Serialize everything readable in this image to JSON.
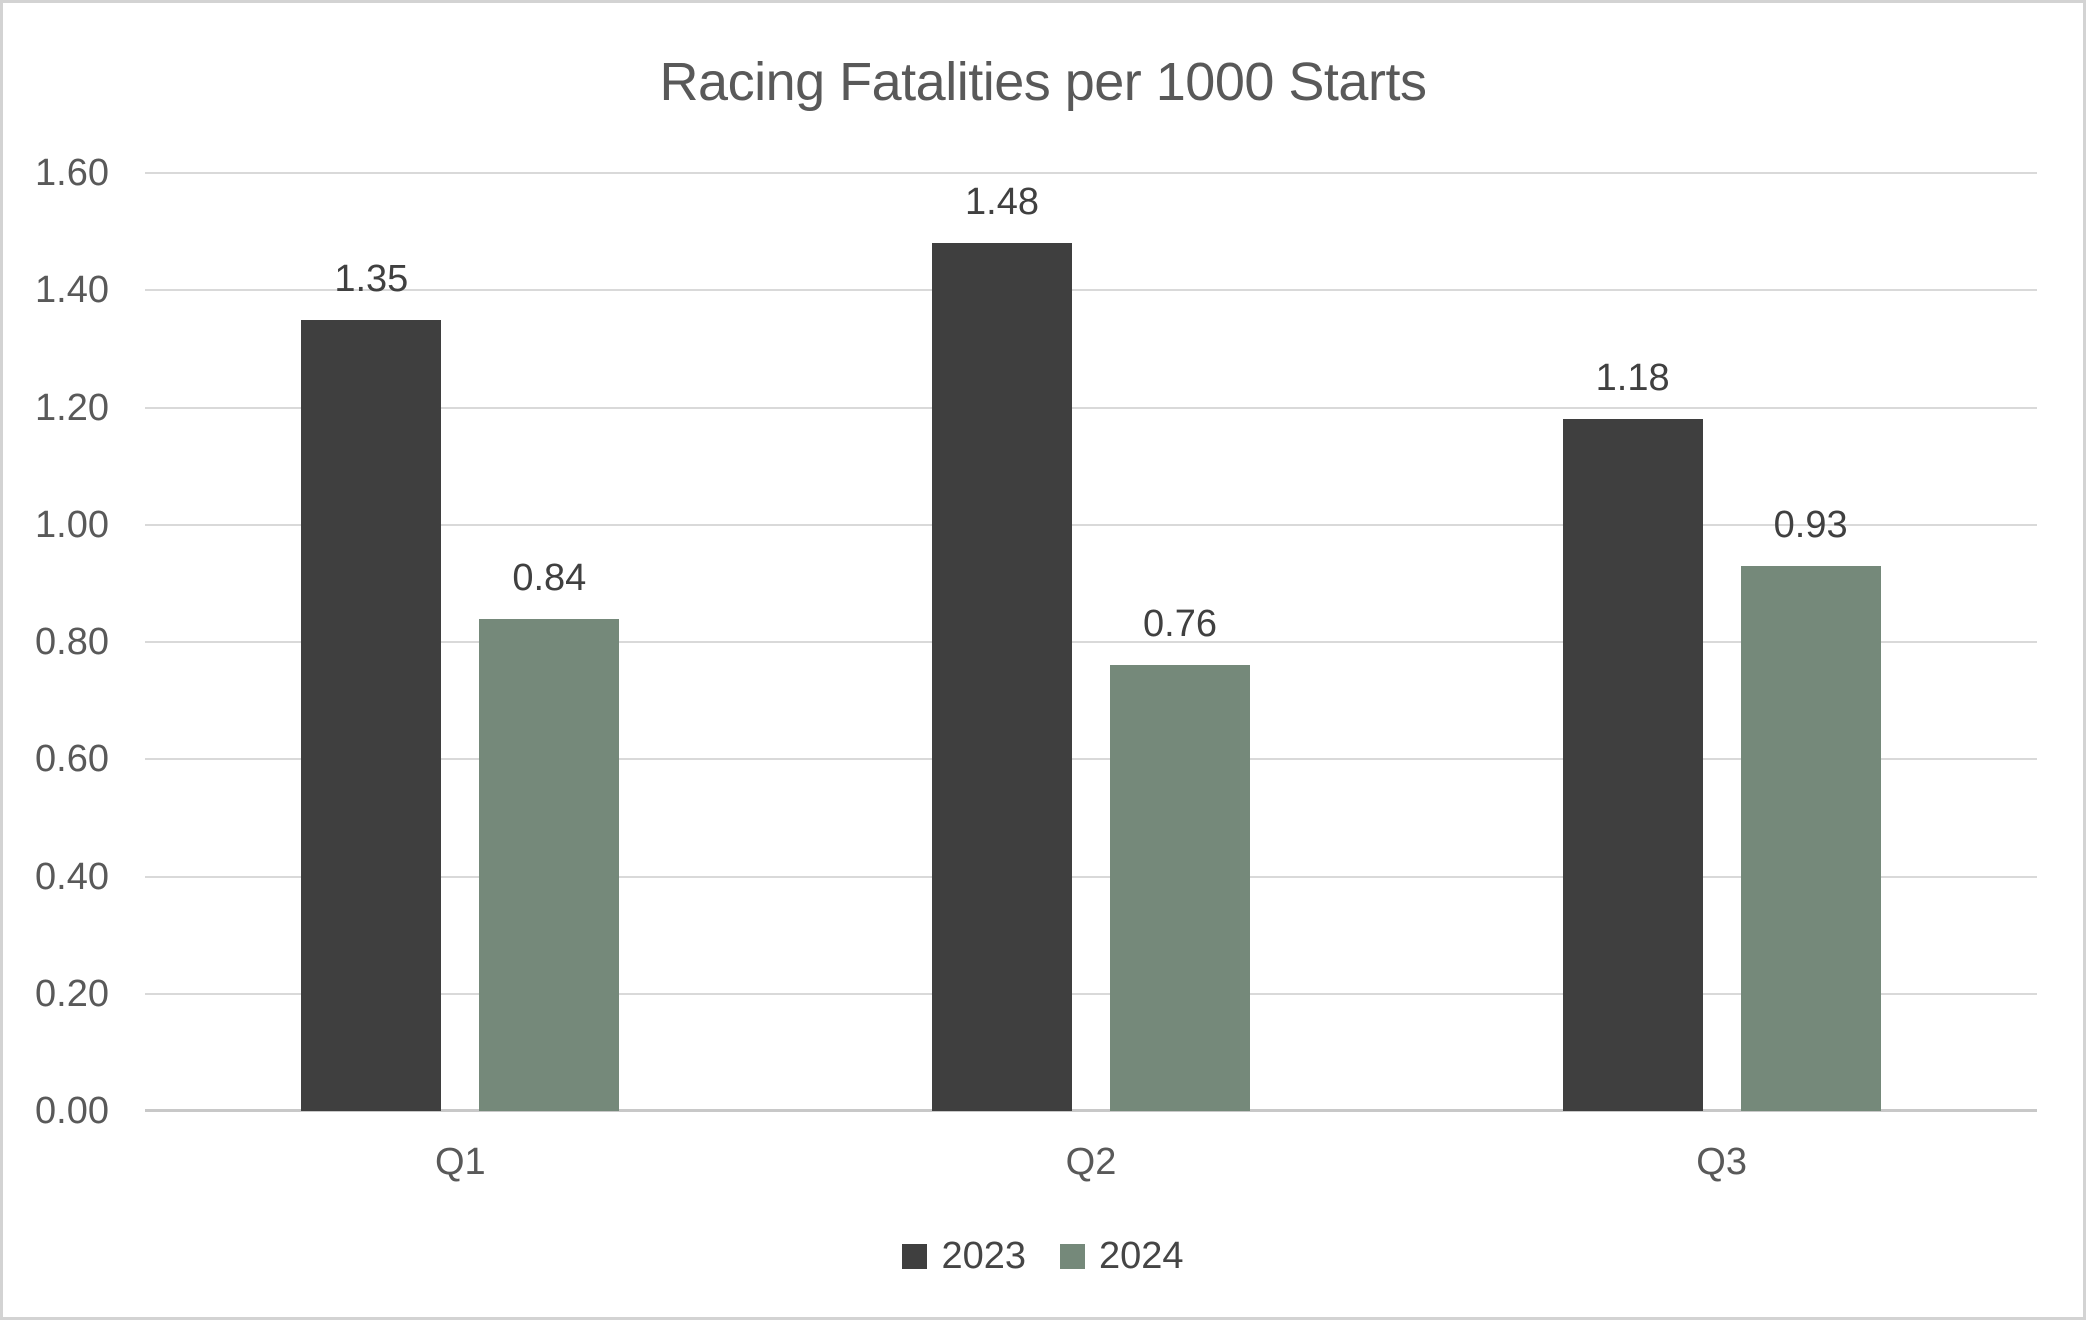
{
  "chart_data": {
    "type": "bar",
    "title": "Racing Fatalities per 1000 Starts",
    "categories": [
      "Q1",
      "Q2",
      "Q3"
    ],
    "series": [
      {
        "name": "2023",
        "color": "#3F3F3F",
        "values": [
          1.35,
          1.48,
          1.18
        ],
        "value_labels": [
          "1.35",
          "1.48",
          "1.18"
        ]
      },
      {
        "name": "2024",
        "color": "#75897A",
        "values": [
          0.84,
          0.76,
          0.93
        ],
        "value_labels": [
          "0.84",
          "0.76",
          "0.93"
        ]
      }
    ],
    "xlabel": "",
    "ylabel": "",
    "ylim": [
      0,
      1.6
    ],
    "y_tick_values": [
      0,
      0.2,
      0.4,
      0.6,
      0.8,
      1.0,
      1.2,
      1.4,
      1.6
    ],
    "y_tick_labels": [
      "0.00",
      "0.20",
      "0.40",
      "0.60",
      "0.80",
      "1.00",
      "1.20",
      "1.40",
      "1.60"
    ],
    "grid": true,
    "legend_position": "bottom"
  },
  "colors": {
    "title_text": "#595959",
    "axis_text": "#595959",
    "data_label_text": "#404040",
    "gridline": "#D9D9D9",
    "axis_line": "#C8C8C8",
    "page_border": "#D3D3D3",
    "background": "#FFFFFF"
  }
}
